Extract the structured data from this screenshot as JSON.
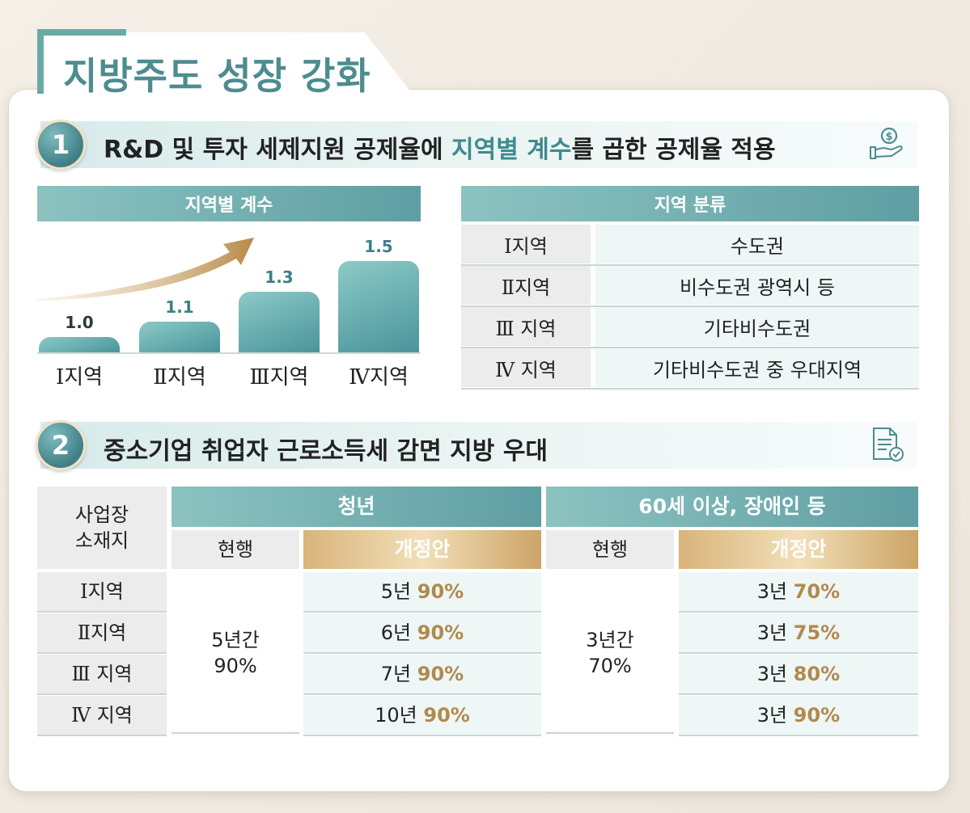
{
  "page_title": "지방주도 성장 강화",
  "section1": {
    "number": "1",
    "text_before": "R&D 및 투자 세제지원 공제율에 ",
    "text_highlight": "지역별 계수",
    "text_after": "를 곱한 공제율 적용",
    "icon": "money-hand-icon"
  },
  "chart": {
    "header": "지역별 계수",
    "bars": [
      {
        "category": "Ⅰ지역",
        "value": "1.0"
      },
      {
        "category": "Ⅱ지역",
        "value": "1.1"
      },
      {
        "category": "Ⅲ지역",
        "value": "1.3"
      },
      {
        "category": "Ⅳ지역",
        "value": "1.5"
      }
    ]
  },
  "chart_data": {
    "type": "bar",
    "categories": [
      "Ⅰ지역",
      "Ⅱ지역",
      "Ⅲ지역",
      "Ⅳ지역"
    ],
    "values": [
      1.0,
      1.1,
      1.3,
      1.5
    ],
    "title": "지역별 계수",
    "xlabel": "",
    "ylabel": "",
    "ylim": [
      0.9,
      1.55
    ]
  },
  "region_table": {
    "header": "지역 분류",
    "rows": [
      {
        "region": "Ⅰ지역",
        "desc": "수도권"
      },
      {
        "region": "Ⅱ지역",
        "desc": "비수도권 광역시 등"
      },
      {
        "region": "Ⅲ 지역",
        "desc": "기타비수도권"
      },
      {
        "region": "Ⅳ 지역",
        "desc": "기타비수도권 중 우대지역"
      }
    ]
  },
  "section2": {
    "number": "2",
    "text": "중소기업 취업자 근로소득세 감면 지방 우대",
    "icon": "document-check-icon"
  },
  "tax_table": {
    "corner_line1": "사업장",
    "corner_line2": "소재지",
    "group_youth": "청년",
    "group_senior": "60세 이상, 장애인 등",
    "current": "현행",
    "proposal": "개정안",
    "youth_current_line1": "5년간",
    "youth_current_line2": "90%",
    "senior_current_line1": "3년간",
    "senior_current_line2": "70%",
    "rows": [
      {
        "region": "Ⅰ지역",
        "youth_years": "5년",
        "youth_rate": "90%",
        "senior_years": "3년",
        "senior_rate": "70%"
      },
      {
        "region": "Ⅱ지역",
        "youth_years": "6년",
        "youth_rate": "90%",
        "senior_years": "3년",
        "senior_rate": "75%"
      },
      {
        "region": "Ⅲ 지역",
        "youth_years": "7년",
        "youth_rate": "90%",
        "senior_years": "3년",
        "senior_rate": "80%"
      },
      {
        "region": "Ⅳ 지역",
        "youth_years": "10년",
        "youth_rate": "90%",
        "senior_years": "3년",
        "senior_rate": "90%"
      }
    ]
  },
  "colors": {
    "teal": "#4d8c8f",
    "gold": "#b08a4d"
  }
}
